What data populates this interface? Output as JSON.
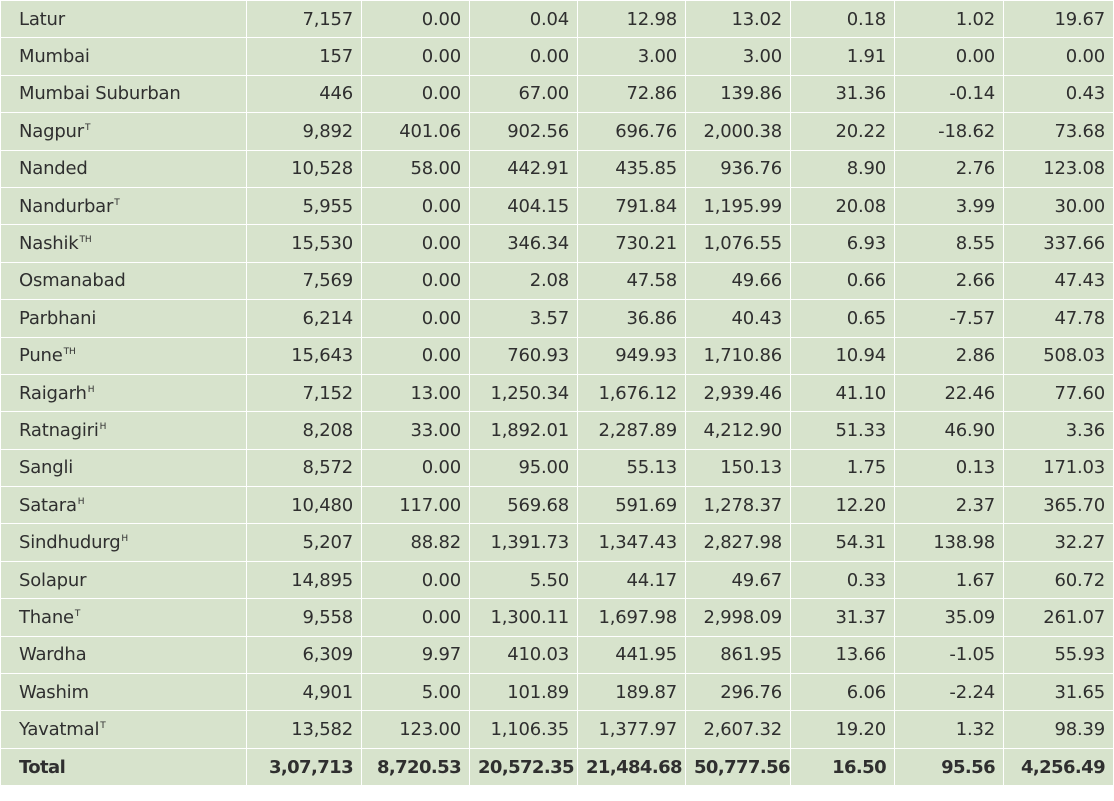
{
  "table": {
    "rows": [
      {
        "district": "Latur",
        "sup": "",
        "values": [
          "7,157",
          "0.00",
          "0.04",
          "12.98",
          "13.02",
          "0.18",
          "1.02",
          "19.67"
        ]
      },
      {
        "district": "Mumbai",
        "sup": "",
        "values": [
          "157",
          "0.00",
          "0.00",
          "3.00",
          "3.00",
          "1.91",
          "0.00",
          "0.00"
        ]
      },
      {
        "district": "Mumbai Suburban",
        "sup": "",
        "values": [
          "446",
          "0.00",
          "67.00",
          "72.86",
          "139.86",
          "31.36",
          "-0.14",
          "0.43"
        ]
      },
      {
        "district": "Nagpur",
        "sup": "T",
        "values": [
          "9,892",
          "401.06",
          "902.56",
          "696.76",
          "2,000.38",
          "20.22",
          "-18.62",
          "73.68"
        ]
      },
      {
        "district": "Nanded",
        "sup": "",
        "values": [
          "10,528",
          "58.00",
          "442.91",
          "435.85",
          "936.76",
          "8.90",
          "2.76",
          "123.08"
        ]
      },
      {
        "district": "Nandurbar",
        "sup": "T",
        "values": [
          "5,955",
          "0.00",
          "404.15",
          "791.84",
          "1,195.99",
          "20.08",
          "3.99",
          "30.00"
        ]
      },
      {
        "district": "Nashik",
        "sup": "TH",
        "values": [
          "15,530",
          "0.00",
          "346.34",
          "730.21",
          "1,076.55",
          "6.93",
          "8.55",
          "337.66"
        ]
      },
      {
        "district": "Osmanabad",
        "sup": "",
        "values": [
          "7,569",
          "0.00",
          "2.08",
          "47.58",
          "49.66",
          "0.66",
          "2.66",
          "47.43"
        ]
      },
      {
        "district": "Parbhani",
        "sup": "",
        "values": [
          "6,214",
          "0.00",
          "3.57",
          "36.86",
          "40.43",
          "0.65",
          "-7.57",
          "47.78"
        ]
      },
      {
        "district": "Pune",
        "sup": "TH",
        "values": [
          "15,643",
          "0.00",
          "760.93",
          "949.93",
          "1,710.86",
          "10.94",
          "2.86",
          "508.03"
        ]
      },
      {
        "district": "Raigarh",
        "sup": "H",
        "values": [
          "7,152",
          "13.00",
          "1,250.34",
          "1,676.12",
          "2,939.46",
          "41.10",
          "22.46",
          "77.60"
        ]
      },
      {
        "district": "Ratnagiri",
        "sup": "H",
        "values": [
          "8,208",
          "33.00",
          "1,892.01",
          "2,287.89",
          "4,212.90",
          "51.33",
          "46.90",
          "3.36"
        ]
      },
      {
        "district": "Sangli",
        "sup": "",
        "values": [
          "8,572",
          "0.00",
          "95.00",
          "55.13",
          "150.13",
          "1.75",
          "0.13",
          "171.03"
        ]
      },
      {
        "district": "Satara",
        "sup": "H",
        "values": [
          "10,480",
          "117.00",
          "569.68",
          "591.69",
          "1,278.37",
          "12.20",
          "2.37",
          "365.70"
        ]
      },
      {
        "district": "Sindhudurg",
        "sup": "H",
        "values": [
          "5,207",
          "88.82",
          "1,391.73",
          "1,347.43",
          "2,827.98",
          "54.31",
          "138.98",
          "32.27"
        ]
      },
      {
        "district": "Solapur",
        "sup": "",
        "values": [
          "14,895",
          "0.00",
          "5.50",
          "44.17",
          "49.67",
          "0.33",
          "1.67",
          "60.72"
        ]
      },
      {
        "district": "Thane",
        "sup": "T",
        "values": [
          "9,558",
          "0.00",
          "1,300.11",
          "1,697.98",
          "2,998.09",
          "31.37",
          "35.09",
          "261.07"
        ]
      },
      {
        "district": "Wardha",
        "sup": "",
        "values": [
          "6,309",
          "9.97",
          "410.03",
          "441.95",
          "861.95",
          "13.66",
          "-1.05",
          "55.93"
        ]
      },
      {
        "district": "Washim",
        "sup": "",
        "values": [
          "4,901",
          "5.00",
          "101.89",
          "189.87",
          "296.76",
          "6.06",
          "-2.24",
          "31.65"
        ]
      },
      {
        "district": "Yavatmal",
        "sup": "T",
        "values": [
          "13,582",
          "123.00",
          "1,106.35",
          "1,377.97",
          "2,607.32",
          "19.20",
          "1.32",
          "98.39"
        ]
      }
    ],
    "total": {
      "label": "Total",
      "values": [
        "3,07,713",
        "8,720.53",
        "20,572.35",
        "21,484.68",
        "50,777.56",
        "16.50",
        "95.56",
        "4,256.49"
      ]
    }
  },
  "colors": {
    "cell_background": "#d7e3cc",
    "border": "#ffffff",
    "text": "#2f2f2f"
  }
}
